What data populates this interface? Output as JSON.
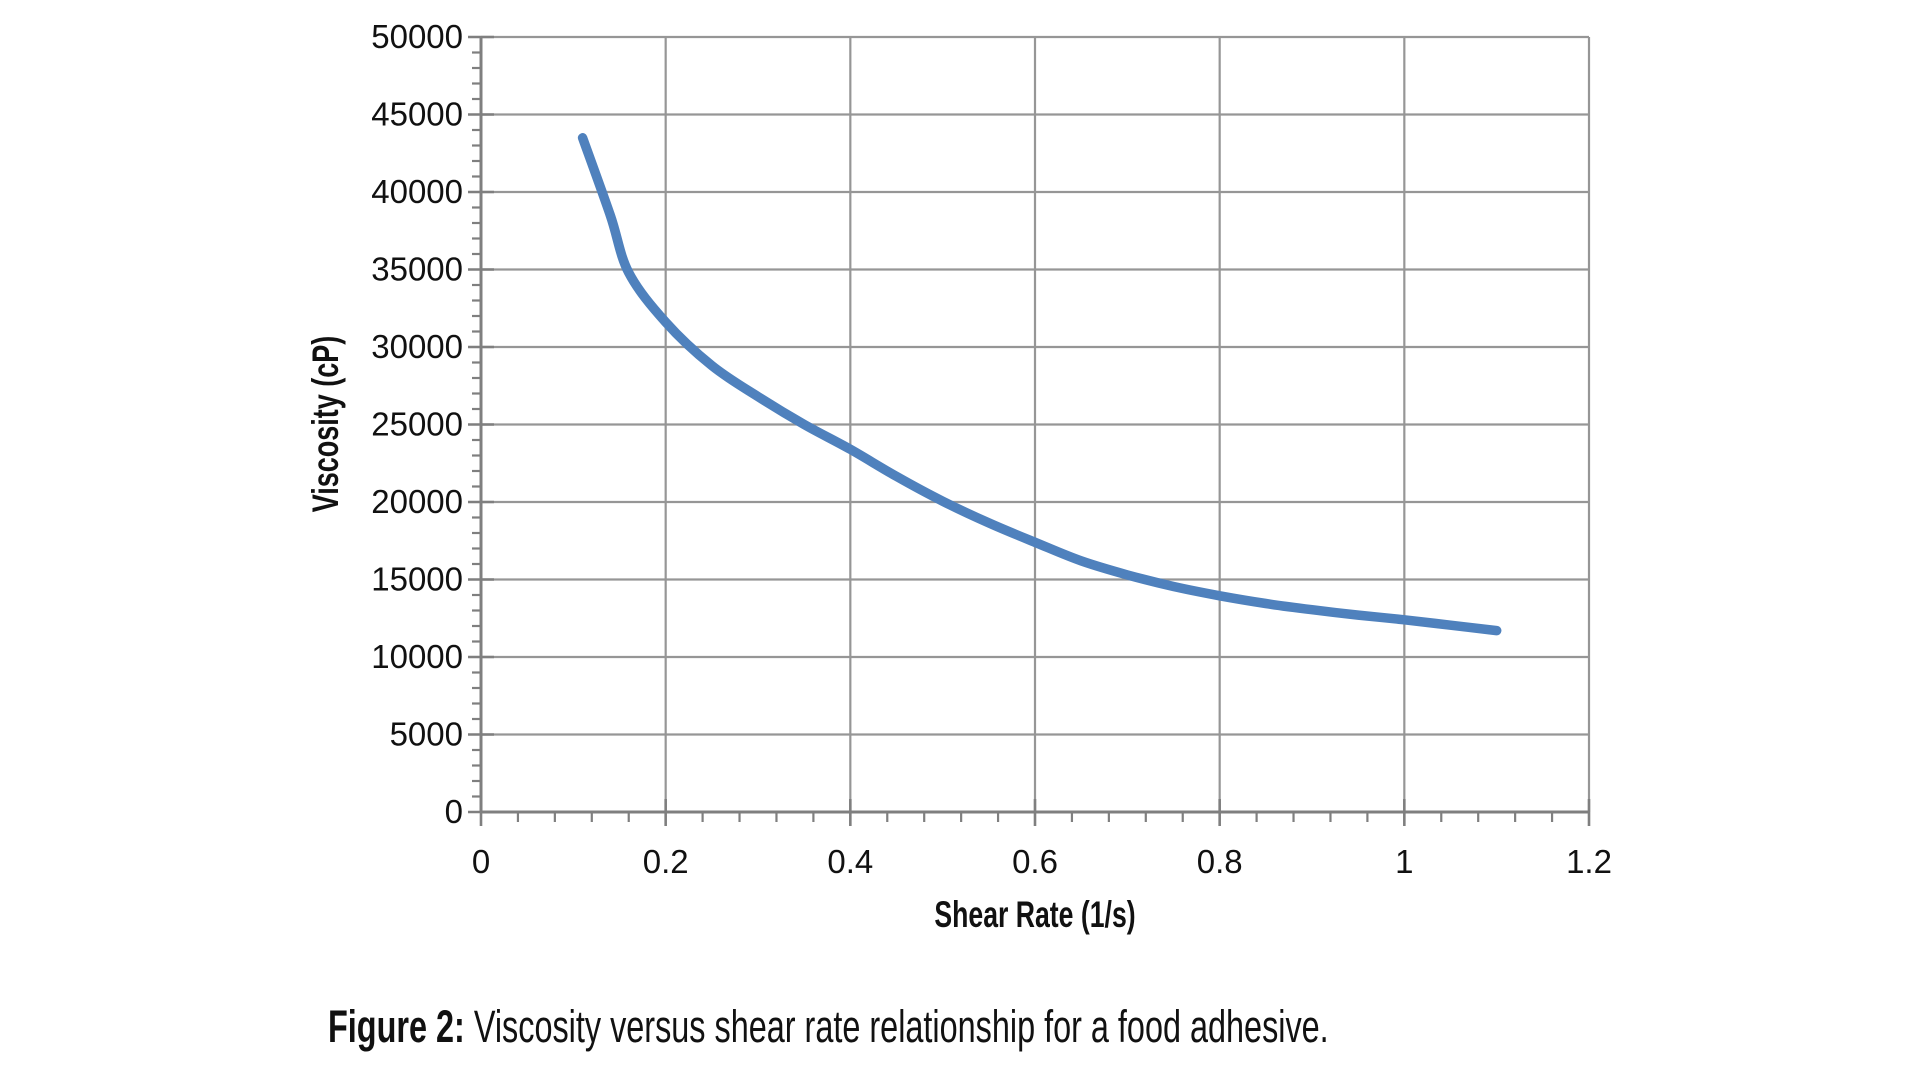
{
  "figure": {
    "caption_label": "Figure 2:",
    "caption_text": "Viscosity versus shear rate relationship for a food adhesive."
  },
  "chart_data": {
    "type": "line",
    "title": "",
    "xlabel": "Shear Rate (1/s)",
    "ylabel": "Viscosity (cP)",
    "xlim": [
      0,
      1.2
    ],
    "ylim": [
      0,
      50000
    ],
    "x_major_ticks": [
      0,
      0.2,
      0.4,
      0.6,
      0.8,
      1,
      1.2
    ],
    "x_tick_labels": [
      "0",
      "0.2",
      "0.4",
      "0.6",
      "0.8",
      "1",
      "1.2"
    ],
    "y_major_ticks": [
      0,
      5000,
      10000,
      15000,
      20000,
      25000,
      30000,
      35000,
      40000,
      45000,
      50000
    ],
    "y_tick_labels": [
      "0",
      "5000",
      "10000",
      "15000",
      "20000",
      "25000",
      "30000",
      "35000",
      "40000",
      "45000",
      "50000"
    ],
    "x_minor_step": 0.04,
    "y_minor_step": 1000,
    "grid": true,
    "legend": "none",
    "colors": {
      "series": "#4F81BD",
      "gridline": "#969696",
      "axis": "#7f7f7f",
      "text": "#111111"
    },
    "series": [
      {
        "name": "Viscosity",
        "points": [
          [
            0.11,
            43500
          ],
          [
            0.14,
            38500
          ],
          [
            0.16,
            34800
          ],
          [
            0.2,
            31600
          ],
          [
            0.25,
            28800
          ],
          [
            0.3,
            26800
          ],
          [
            0.35,
            25000
          ],
          [
            0.4,
            23400
          ],
          [
            0.45,
            21650
          ],
          [
            0.5,
            20050
          ],
          [
            0.55,
            18650
          ],
          [
            0.6,
            17400
          ],
          [
            0.65,
            16200
          ],
          [
            0.7,
            15300
          ],
          [
            0.75,
            14550
          ],
          [
            0.8,
            13950
          ],
          [
            0.85,
            13450
          ],
          [
            0.9,
            13050
          ],
          [
            0.95,
            12700
          ],
          [
            1.0,
            12400
          ],
          [
            1.05,
            12050
          ],
          [
            1.1,
            11700
          ]
        ]
      }
    ]
  }
}
